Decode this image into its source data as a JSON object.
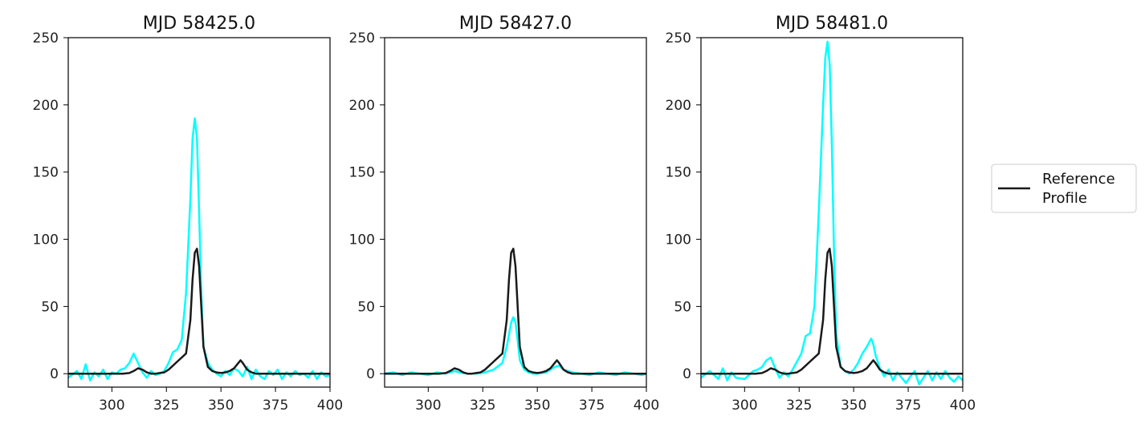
{
  "chart_data": [
    {
      "type": "line",
      "title": "MJD 58425.0",
      "xlim": [
        280,
        400
      ],
      "ylim": [
        -10,
        250
      ],
      "xticks": [
        300,
        325,
        350,
        375,
        400
      ],
      "yticks": [
        0,
        50,
        100,
        150,
        200,
        250
      ],
      "series": [
        {
          "color": "#00ffff",
          "x": [
            280,
            284,
            286,
            288,
            290,
            292,
            294,
            296,
            298,
            300,
            302,
            304,
            306,
            308,
            310,
            312,
            314,
            316,
            318,
            320,
            322,
            324,
            326,
            328,
            330,
            332,
            334,
            336,
            337,
            338,
            339,
            340,
            341,
            342,
            344,
            346,
            348,
            350,
            352,
            354,
            356,
            358,
            360,
            362,
            364,
            366,
            368,
            370,
            372,
            374,
            376,
            378,
            380,
            382,
            384,
            386,
            388,
            390,
            392,
            394,
            396,
            398,
            400
          ],
          "y": [
            -3,
            2,
            -4,
            7,
            -5,
            1,
            -2,
            3,
            -4,
            1,
            0,
            3,
            4,
            8,
            15,
            8,
            1,
            -3,
            2,
            -1,
            0,
            2,
            8,
            16,
            18,
            25,
            60,
            130,
            175,
            190,
            175,
            120,
            60,
            20,
            8,
            3,
            0,
            -2,
            2,
            -1,
            4,
            2,
            -2,
            5,
            -4,
            3,
            -2,
            -4,
            2,
            -1,
            3,
            -4,
            1,
            -2,
            2,
            -1,
            0,
            -3,
            2,
            -4,
            1,
            -2,
            -1
          ]
        },
        {
          "name": "Reference Profile",
          "color": "#1a1a1a",
          "x": [
            280,
            300,
            305,
            308,
            310,
            312,
            314,
            316,
            318,
            320,
            322,
            324,
            326,
            328,
            330,
            332,
            334,
            336,
            337,
            338,
            339,
            340,
            341,
            342,
            344,
            346,
            348,
            350,
            352,
            354,
            356,
            358,
            359,
            360,
            362,
            364,
            366,
            368,
            370,
            372,
            375,
            380,
            390,
            400
          ],
          "y": [
            0,
            0,
            0,
            0.5,
            2,
            4,
            3,
            1,
            0,
            0,
            0.5,
            1,
            3,
            6,
            9,
            12,
            15,
            40,
            70,
            90,
            93,
            80,
            50,
            20,
            5,
            2,
            1,
            0.5,
            1,
            2,
            4,
            8,
            10,
            8,
            3,
            1,
            0,
            0,
            0,
            0,
            0,
            0,
            0,
            0
          ]
        }
      ]
    },
    {
      "type": "line",
      "title": "MJD 58427.0",
      "xlim": [
        280,
        400
      ],
      "ylim": [
        -10,
        250
      ],
      "xticks": [
        300,
        325,
        350,
        375,
        400
      ],
      "yticks": [
        0,
        50,
        100,
        150,
        200,
        250
      ],
      "series": [
        {
          "color": "#00ffff",
          "x": [
            280,
            284,
            288,
            292,
            296,
            300,
            304,
            308,
            310,
            312,
            314,
            318,
            322,
            326,
            330,
            334,
            336,
            338,
            339,
            340,
            341,
            342,
            344,
            346,
            348,
            350,
            354,
            356,
            358,
            360,
            362,
            366,
            370,
            374,
            378,
            382,
            386,
            390,
            394,
            398,
            400
          ],
          "y": [
            0,
            1,
            -1,
            1,
            0,
            -1,
            1,
            0,
            1,
            2,
            1,
            0,
            0,
            1,
            3,
            8,
            20,
            38,
            42,
            38,
            25,
            10,
            3,
            1,
            0,
            0,
            1,
            3,
            5,
            6,
            3,
            1,
            0,
            -1,
            1,
            0,
            -1,
            1,
            0,
            -1,
            0
          ]
        },
        {
          "name": "Reference Profile",
          "color": "#1a1a1a",
          "x": [
            280,
            300,
            305,
            308,
            310,
            312,
            314,
            316,
            318,
            320,
            322,
            324,
            326,
            328,
            330,
            332,
            334,
            336,
            337,
            338,
            339,
            340,
            341,
            342,
            344,
            346,
            348,
            350,
            352,
            354,
            356,
            358,
            359,
            360,
            362,
            364,
            366,
            368,
            370,
            372,
            375,
            380,
            390,
            400
          ],
          "y": [
            0,
            0,
            0,
            0.5,
            2,
            4,
            3,
            1,
            0,
            0,
            0.5,
            1,
            3,
            6,
            9,
            12,
            15,
            40,
            70,
            90,
            93,
            80,
            50,
            20,
            5,
            2,
            1,
            0.5,
            1,
            2,
            4,
            8,
            10,
            8,
            3,
            1,
            0,
            0,
            0,
            0,
            0,
            0,
            0,
            0
          ]
        }
      ]
    },
    {
      "type": "line",
      "title": "MJD 58481.0",
      "xlim": [
        280,
        400
      ],
      "ylim": [
        -10,
        250
      ],
      "xticks": [
        300,
        325,
        350,
        375,
        400
      ],
      "yticks": [
        0,
        50,
        100,
        150,
        200,
        250
      ],
      "series": [
        {
          "color": "#00ffff",
          "x": [
            280,
            284,
            288,
            290,
            292,
            294,
            296,
            300,
            304,
            306,
            308,
            310,
            312,
            314,
            316,
            318,
            320,
            322,
            326,
            328,
            330,
            332,
            334,
            336,
            337,
            338,
            339,
            340,
            341,
            342,
            344,
            346,
            348,
            350,
            352,
            354,
            356,
            358,
            359,
            360,
            362,
            364,
            366,
            368,
            370,
            372,
            374,
            376,
            378,
            380,
            382,
            384,
            386,
            388,
            390,
            392,
            394,
            396,
            398,
            400
          ],
          "y": [
            -3,
            2,
            -4,
            4,
            -5,
            1,
            -3,
            -4,
            2,
            3,
            5,
            10,
            12,
            4,
            -3,
            1,
            -2,
            3,
            15,
            28,
            30,
            50,
            120,
            200,
            235,
            247,
            230,
            170,
            90,
            30,
            5,
            2,
            0,
            3,
            8,
            15,
            20,
            26,
            22,
            14,
            4,
            -2,
            3,
            -5,
            1,
            -3,
            -7,
            -2,
            2,
            -8,
            -3,
            2,
            -5,
            1,
            -4,
            2,
            -3,
            -6,
            -2,
            -5
          ]
        },
        {
          "name": "Reference Profile",
          "color": "#1a1a1a",
          "x": [
            280,
            300,
            305,
            308,
            310,
            312,
            314,
            316,
            318,
            320,
            322,
            324,
            326,
            328,
            330,
            332,
            334,
            336,
            337,
            338,
            339,
            340,
            341,
            342,
            344,
            346,
            348,
            350,
            352,
            354,
            356,
            358,
            359,
            360,
            362,
            364,
            366,
            368,
            370,
            372,
            375,
            380,
            390,
            400
          ],
          "y": [
            0,
            0,
            0,
            0.5,
            2,
            4,
            3,
            1,
            0,
            0,
            0.5,
            1,
            3,
            6,
            9,
            12,
            15,
            40,
            70,
            90,
            93,
            80,
            50,
            20,
            5,
            2,
            1,
            0.5,
            1,
            2,
            4,
            8,
            10,
            8,
            3,
            1,
            0,
            0,
            0,
            0,
            0,
            0,
            0,
            0
          ]
        }
      ]
    }
  ],
  "legend": {
    "placement": "right",
    "entries": [
      {
        "label_line1": "Reference",
        "label_line2": "Profile",
        "color": "#1a1a1a"
      }
    ]
  }
}
